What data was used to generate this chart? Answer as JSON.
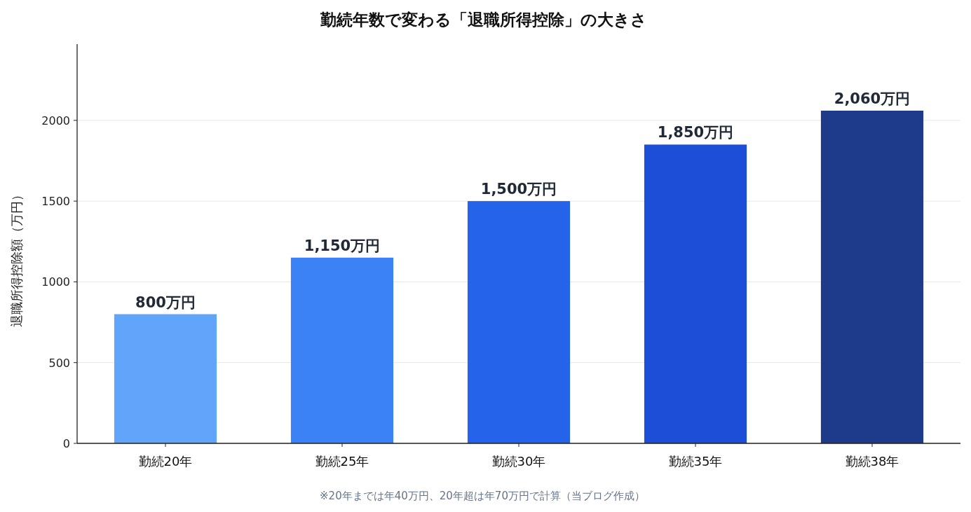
{
  "chart_data": {
    "type": "bar",
    "title": "勤続年数で変わる「退職所得控除」の大きさ",
    "ylabel": "退職所得控除額（万円）",
    "categories": [
      "勤続20年",
      "勤続25年",
      "勤続30年",
      "勤続35年",
      "勤続38年"
    ],
    "values": [
      800,
      1150,
      1500,
      1850,
      2060
    ],
    "colors": [
      "#60a5fa",
      "#3b82f6",
      "#2563eb",
      "#1d4ed8",
      "#1e3a8a"
    ],
    "value_labels": [
      "800万円",
      "1,150万円",
      "1,500万円",
      "1,850万円",
      "2,060万円"
    ],
    "ylim": [
      0,
      2472
    ],
    "yticks": [
      0,
      500,
      1000,
      1500,
      2000
    ],
    "grid": "y",
    "annotations": [
      "※20年までは年40万円、20年超は年70万円で計算（当ブログ作成）"
    ]
  }
}
